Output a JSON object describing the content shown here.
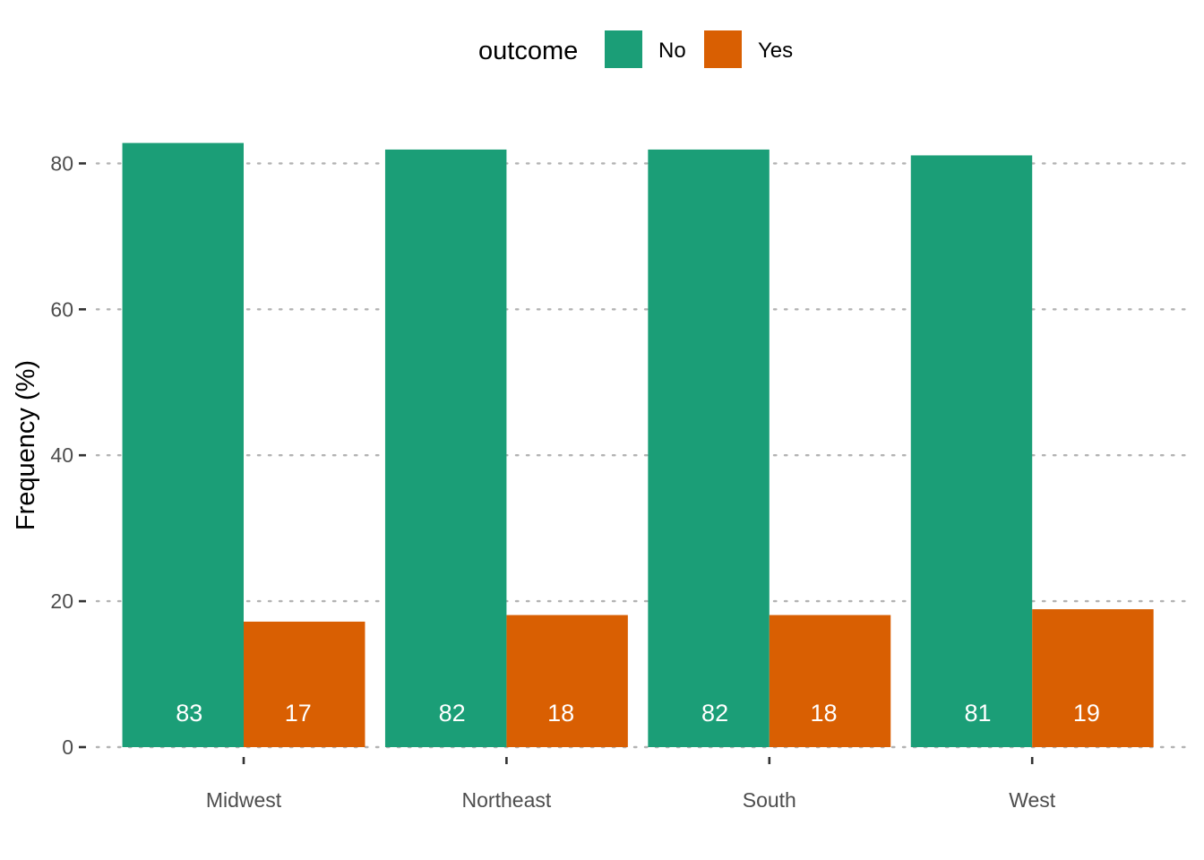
{
  "chart_data": {
    "type": "bar",
    "title": "",
    "xlabel": "",
    "ylabel": "Frequency (%)",
    "ylim": [
      0,
      83
    ],
    "yticks": [
      0,
      20,
      40,
      60,
      80
    ],
    "categories": [
      "Midwest",
      "Northeast",
      "South",
      "West"
    ],
    "legend": {
      "title": "outcome",
      "position": "top"
    },
    "grid": "horizontal dotted",
    "series": [
      {
        "name": "No",
        "color": "#1B9E77",
        "values": [
          82.8,
          81.9,
          81.9,
          81.1
        ],
        "labels": [
          "83",
          "82",
          "82",
          "81"
        ]
      },
      {
        "name": "Yes",
        "color": "#D95F02",
        "values": [
          17.2,
          18.1,
          18.1,
          18.9
        ],
        "labels": [
          "17",
          "18",
          "18",
          "19"
        ]
      }
    ]
  }
}
